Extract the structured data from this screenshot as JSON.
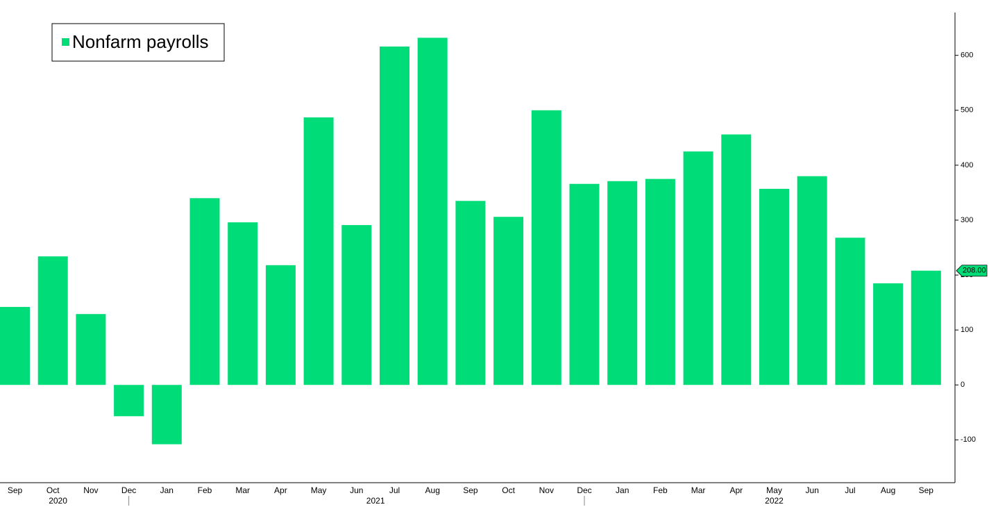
{
  "chart_data": {
    "type": "bar",
    "series": [
      {
        "name": "Nonfarm payrolls",
        "color": "#00dc78",
        "values": [
          142,
          234,
          129,
          -57,
          -108,
          340,
          296,
          218,
          487,
          291,
          616,
          632,
          335,
          306,
          500,
          366,
          371,
          375,
          425,
          456,
          357,
          380,
          268,
          185,
          208
        ],
        "value_labels": [
          null,
          null,
          null,
          null,
          null,
          null,
          null,
          null,
          null,
          null,
          null,
          null,
          null,
          null,
          null,
          null,
          null,
          null,
          null,
          null,
          null,
          null,
          null,
          null,
          "208.00"
        ]
      }
    ],
    "categories": [
      "Sep",
      "Oct",
      "Nov",
      "Dec",
      "Jan",
      "Feb",
      "Mar",
      "Apr",
      "May",
      "Jun",
      "Jul",
      "Aug",
      "Sep",
      "Oct",
      "Nov",
      "Dec",
      "Jan",
      "Feb",
      "Mar",
      "Apr",
      "May",
      "Jun",
      "Jul",
      "Aug",
      "Sep"
    ],
    "x_groups": [
      {
        "label": "2020",
        "count": 4
      },
      {
        "label": "2021",
        "count": 12
      },
      {
        "label": "2022",
        "count": 9
      }
    ],
    "ylim": [
      -178,
      678
    ],
    "yticks": [
      -100,
      0,
      100,
      200,
      300,
      400,
      500,
      600
    ],
    "legend": "upper left"
  }
}
